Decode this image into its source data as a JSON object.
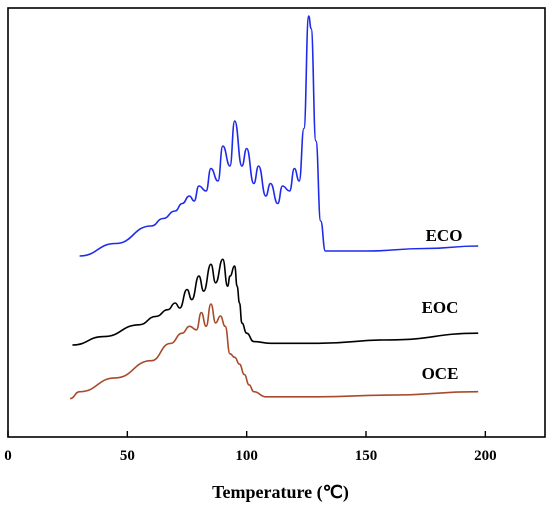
{
  "chart_data": {
    "type": "line",
    "title": "",
    "xlabel": "Temperature (℃)",
    "ylabel": "",
    "xlim": [
      0,
      225
    ],
    "x_ticks": [
      0,
      50,
      100,
      150,
      200
    ],
    "x_tick_labels": [
      "0",
      "50",
      "100",
      "150",
      "200"
    ],
    "y_ticks_shown": false,
    "grid": false,
    "series": [
      {
        "name": "ECO",
        "color": "#1f2bea",
        "x": [
          30,
          45,
          60,
          65,
          70,
          73,
          76,
          78,
          80,
          83,
          85,
          88,
          90,
          93,
          95,
          98,
          100,
          103,
          105,
          108,
          110,
          113,
          115,
          118,
          120,
          122,
          124,
          126,
          127,
          129,
          131,
          133,
          150,
          175,
          197
        ],
        "y": [
          0.04,
          0.09,
          0.16,
          0.19,
          0.22,
          0.25,
          0.28,
          0.26,
          0.32,
          0.3,
          0.39,
          0.34,
          0.48,
          0.4,
          0.58,
          0.4,
          0.47,
          0.33,
          0.4,
          0.28,
          0.33,
          0.25,
          0.32,
          0.3,
          0.39,
          0.34,
          0.55,
          1.0,
          0.95,
          0.5,
          0.18,
          0.06,
          0.06,
          0.07,
          0.08
        ]
      },
      {
        "name": "EOC",
        "color": "#000000",
        "x": [
          27,
          40,
          55,
          62,
          67,
          70,
          72,
          75,
          77,
          80,
          82,
          85,
          87,
          90,
          92,
          93,
          95,
          96,
          97,
          98,
          100,
          103,
          110,
          130,
          160,
          197
        ],
        "y": [
          0.03,
          0.08,
          0.15,
          0.2,
          0.24,
          0.28,
          0.25,
          0.36,
          0.3,
          0.44,
          0.35,
          0.51,
          0.4,
          0.54,
          0.38,
          0.44,
          0.5,
          0.38,
          0.28,
          0.16,
          0.1,
          0.05,
          0.04,
          0.04,
          0.06,
          0.1
        ]
      },
      {
        "name": "OCE",
        "color": "#a84a2c",
        "x": [
          26,
          30,
          45,
          60,
          68,
          73,
          76,
          79,
          81,
          83,
          85,
          87,
          89,
          91,
          93,
          95,
          97,
          99,
          101,
          103,
          108,
          130,
          160,
          197
        ],
        "y": [
          0.02,
          0.06,
          0.14,
          0.24,
          0.34,
          0.4,
          0.44,
          0.42,
          0.52,
          0.44,
          0.57,
          0.46,
          0.5,
          0.44,
          0.28,
          0.26,
          0.22,
          0.16,
          0.1,
          0.06,
          0.03,
          0.03,
          0.04,
          0.06
        ]
      }
    ],
    "annotations": [
      {
        "text": "ECO",
        "series": "ECO"
      },
      {
        "text": "EOC",
        "series": "EOC"
      },
      {
        "text": "OCE",
        "series": "OCE"
      }
    ]
  }
}
